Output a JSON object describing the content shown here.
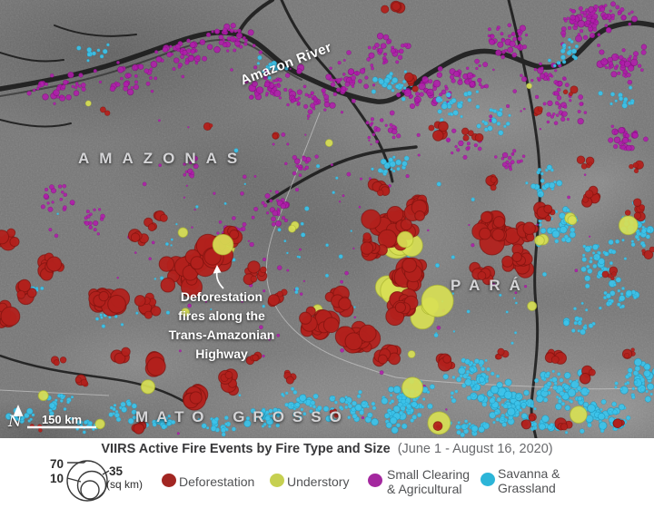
{
  "map": {
    "labels": {
      "state_amazonas": "AMAZONAS",
      "state_para": "PARÁ",
      "state_mato_grosso": "MATO GROSSO",
      "river": "Amazon River",
      "annotation": "Deforestation\nfires along the\nTrans-Amazonian\nHighway",
      "scale": "150 km",
      "north": "N"
    },
    "fire_type_colors": {
      "d": {
        "fill": "#b2211c",
        "stroke": "#7e120e",
        "opacity": 0.95
      },
      "u": {
        "fill": "#d8e055",
        "stroke": "#aab530",
        "opacity": 0.92
      },
      "s": {
        "fill": "#b01dab",
        "stroke": "#770f74",
        "opacity": 0.88
      },
      "g": {
        "fill": "#3cc3ea",
        "stroke": "#1b93b8",
        "opacity": 0.92
      }
    },
    "clusters": [
      [
        "s",
        70,
        95,
        45,
        22,
        35,
        1.5,
        3.5
      ],
      [
        "s",
        140,
        85,
        40,
        20,
        30,
        1.5,
        3.5
      ],
      [
        "s",
        205,
        65,
        35,
        22,
        40,
        1.5,
        3.5
      ],
      [
        "s",
        258,
        42,
        30,
        18,
        40,
        1.5,
        3.5
      ],
      [
        "s",
        300,
        95,
        35,
        25,
        45,
        1.5,
        4
      ],
      [
        "s",
        345,
        110,
        30,
        20,
        35,
        1.5,
        3.5
      ],
      [
        "s",
        385,
        90,
        35,
        22,
        40,
        1.5,
        3.5
      ],
      [
        "s",
        425,
        55,
        30,
        20,
        30,
        1.5,
        3.5
      ],
      [
        "s",
        470,
        100,
        35,
        22,
        40,
        1.5,
        4
      ],
      [
        "s",
        515,
        85,
        35,
        20,
        35,
        1.5,
        3.5
      ],
      [
        "s",
        555,
        45,
        30,
        22,
        40,
        1.5,
        3.5
      ],
      [
        "s",
        600,
        85,
        30,
        20,
        30,
        1.5,
        3.5
      ],
      [
        "s",
        645,
        30,
        35,
        25,
        55,
        1.5,
        4
      ],
      [
        "s",
        685,
        70,
        30,
        22,
        45,
        1.5,
        4
      ],
      [
        "s",
        690,
        155,
        25,
        20,
        30,
        1.5,
        3.5
      ],
      [
        "s",
        620,
        120,
        30,
        20,
        30,
        1.5,
        3.5
      ],
      [
        "s",
        665,
        15,
        40,
        14,
        40,
        1.5,
        3.5
      ],
      [
        "s",
        300,
        230,
        28,
        22,
        25,
        1.5,
        3.5
      ],
      [
        "s",
        255,
        255,
        22,
        18,
        18,
        1.5,
        3
      ],
      [
        "s",
        330,
        180,
        22,
        15,
        15,
        1.5,
        3
      ],
      [
        "s",
        65,
        215,
        25,
        18,
        18,
        1.5,
        3
      ],
      [
        "s",
        100,
        245,
        20,
        15,
        14,
        1.5,
        3
      ],
      [
        "s",
        210,
        185,
        18,
        14,
        10,
        1.5,
        3
      ],
      [
        "s",
        420,
        140,
        22,
        18,
        18,
        1.5,
        3
      ],
      [
        "s",
        510,
        160,
        25,
        18,
        15,
        1.5,
        3
      ],
      [
        "s",
        560,
        180,
        22,
        16,
        15,
        1.5,
        3
      ],
      [
        "s",
        360,
        240,
        360,
        240,
        130,
        1,
        2.5
      ],
      [
        "g",
        430,
        95,
        30,
        20,
        25,
        1.5,
        3.5
      ],
      [
        "g",
        500,
        115,
        30,
        20,
        25,
        1.5,
        3.5
      ],
      [
        "g",
        545,
        130,
        25,
        18,
        18,
        1.5,
        3
      ],
      [
        "g",
        300,
        75,
        20,
        15,
        12,
        1.5,
        3
      ],
      [
        "g",
        100,
        60,
        25,
        15,
        10,
        1.5,
        3
      ],
      [
        "g",
        620,
        60,
        25,
        18,
        18,
        1.5,
        3
      ],
      [
        "g",
        680,
        110,
        22,
        16,
        15,
        1.5,
        3
      ],
      [
        "g",
        615,
        250,
        28,
        22,
        30,
        1.5,
        4
      ],
      [
        "g",
        660,
        285,
        30,
        25,
        40,
        1.5,
        4
      ],
      [
        "g",
        700,
        255,
        22,
        20,
        30,
        1.5,
        4
      ],
      [
        "g",
        680,
        325,
        25,
        20,
        25,
        1.5,
        4
      ],
      [
        "g",
        640,
        355,
        25,
        18,
        20,
        1.5,
        4
      ],
      [
        "g",
        600,
        200,
        25,
        18,
        20,
        1.5,
        3.5
      ],
      [
        "g",
        430,
        180,
        25,
        18,
        20,
        1.5,
        3.5
      ],
      [
        "g",
        32,
        320,
        16,
        12,
        12,
        1.5,
        3.5
      ],
      [
        "g",
        115,
        350,
        18,
        12,
        10,
        1.5,
        3
      ],
      [
        "g",
        450,
        440,
        35,
        25,
        55,
        1.5,
        4.5
      ],
      [
        "g",
        520,
        420,
        35,
        25,
        60,
        1.5,
        4.5
      ],
      [
        "g",
        565,
        450,
        35,
        22,
        55,
        1.5,
        4.5
      ],
      [
        "g",
        620,
        430,
        35,
        25,
        60,
        1.5,
        4.5
      ],
      [
        "g",
        665,
        460,
        35,
        20,
        50,
        1.5,
        4.5
      ],
      [
        "g",
        700,
        420,
        25,
        22,
        40,
        1.5,
        4.5
      ],
      [
        "g",
        385,
        450,
        30,
        22,
        40,
        1.5,
        4
      ],
      [
        "g",
        330,
        445,
        28,
        20,
        30,
        1.5,
        4
      ],
      [
        "g",
        290,
        462,
        25,
        15,
        25,
        1.5,
        4
      ],
      [
        "g",
        240,
        468,
        22,
        12,
        20,
        1.5,
        3.5
      ],
      [
        "g",
        135,
        452,
        22,
        15,
        18,
        1.5,
        3.5
      ],
      [
        "g",
        62,
        442,
        22,
        15,
        20,
        1.5,
        3.5
      ],
      [
        "g",
        25,
        462,
        18,
        12,
        16,
        1.5,
        3.5
      ],
      [
        "g",
        95,
        470,
        20,
        10,
        16,
        1.5,
        3.5
      ],
      [
        "g",
        175,
        465,
        20,
        10,
        14,
        1.5,
        3.5
      ],
      [
        "g",
        520,
        470,
        30,
        10,
        25,
        1.5,
        4
      ],
      [
        "g",
        600,
        470,
        30,
        10,
        25,
        1.5,
        4
      ],
      [
        "g",
        360,
        300,
        360,
        180,
        80,
        1,
        2.5
      ],
      [
        "u",
        240,
        272,
        16,
        12,
        3,
        8,
        15
      ],
      [
        "u",
        320,
        255,
        10,
        8,
        2,
        4,
        7
      ],
      [
        "u",
        200,
        258,
        8,
        6,
        1,
        4,
        6
      ],
      [
        "u",
        452,
        268,
        20,
        16,
        3,
        12,
        21
      ],
      [
        "u",
        432,
        315,
        14,
        12,
        2,
        12,
        18
      ],
      [
        "u",
        465,
        342,
        14,
        10,
        2,
        9,
        15
      ],
      [
        "u",
        345,
        342,
        8,
        6,
        1,
        4,
        6
      ],
      [
        "u",
        628,
        242,
        10,
        8,
        2,
        5,
        9
      ],
      [
        "u",
        596,
        262,
        10,
        10,
        2,
        5,
        8
      ],
      [
        "u",
        690,
        250,
        8,
        6,
        1,
        10,
        13
      ],
      [
        "u",
        585,
        338,
        6,
        5,
        1,
        4,
        6
      ],
      [
        "u",
        455,
        430,
        8,
        6,
        1,
        10,
        13
      ],
      [
        "u",
        482,
        466,
        8,
        6,
        1,
        12,
        15
      ],
      [
        "u",
        638,
        456,
        8,
        6,
        1,
        8,
        11
      ],
      [
        "u",
        160,
        430,
        8,
        6,
        1,
        7,
        9
      ],
      [
        "u",
        48,
        437,
        6,
        5,
        1,
        5,
        7
      ],
      [
        "u",
        110,
        470,
        6,
        5,
        1,
        4,
        6
      ],
      [
        "u",
        95,
        115,
        5,
        4,
        1,
        3,
        4
      ],
      [
        "u",
        580,
        95,
        5,
        4,
        1,
        3,
        4
      ],
      [
        "u",
        360,
        160,
        5,
        4,
        1,
        3,
        4
      ],
      [
        "d",
        55,
        290,
        18,
        14,
        10,
        4,
        10
      ],
      [
        "d",
        28,
        322,
        14,
        12,
        7,
        4,
        9
      ],
      [
        "d",
        8,
        262,
        10,
        12,
        6,
        4,
        9
      ],
      [
        "d",
        5,
        345,
        10,
        14,
        8,
        5,
        11
      ],
      [
        "d",
        115,
        330,
        22,
        14,
        14,
        5,
        11
      ],
      [
        "d",
        162,
        338,
        18,
        12,
        9,
        4,
        9
      ],
      [
        "d",
        150,
        262,
        12,
        10,
        5,
        3,
        7
      ],
      [
        "d",
        172,
        242,
        12,
        10,
        6,
        4,
        8
      ],
      [
        "d",
        205,
        300,
        22,
        18,
        22,
        6,
        13
      ],
      [
        "d",
        232,
        278,
        20,
        16,
        18,
        6,
        13
      ],
      [
        "d",
        256,
        259,
        14,
        12,
        10,
        4,
        9
      ],
      [
        "d",
        282,
        300,
        14,
        12,
        8,
        3,
        8
      ],
      [
        "d",
        308,
        330,
        12,
        10,
        6,
        3,
        7
      ],
      [
        "d",
        352,
        355,
        22,
        14,
        20,
        5,
        11
      ],
      [
        "d",
        395,
        372,
        20,
        14,
        16,
        5,
        12
      ],
      [
        "d",
        428,
        392,
        14,
        10,
        8,
        4,
        9
      ],
      [
        "d",
        432,
        252,
        24,
        20,
        26,
        6,
        14
      ],
      [
        "d",
        448,
        300,
        18,
        16,
        20,
        6,
        13
      ],
      [
        "d",
        442,
        340,
        16,
        14,
        14,
        5,
        11
      ],
      [
        "d",
        462,
        228,
        14,
        12,
        12,
        5,
        10
      ],
      [
        "d",
        408,
        272,
        14,
        14,
        12,
        4,
        9
      ],
      [
        "d",
        372,
        332,
        16,
        12,
        12,
        4,
        9
      ],
      [
        "d",
        548,
        252,
        24,
        18,
        26,
        6,
        14
      ],
      [
        "d",
        572,
        288,
        16,
        14,
        12,
        5,
        10
      ],
      [
        "d",
        532,
        300,
        12,
        10,
        7,
        4,
        8
      ],
      [
        "d",
        600,
        235,
        12,
        10,
        8,
        3,
        7
      ],
      [
        "d",
        582,
        258,
        12,
        10,
        8,
        4,
        8
      ],
      [
        "d",
        652,
        215,
        12,
        10,
        8,
        3,
        6
      ],
      [
        "d",
        698,
        232,
        10,
        10,
        7,
        3,
        6
      ],
      [
        "d",
        645,
        180,
        10,
        8,
        5,
        2,
        5
      ],
      [
        "d",
        672,
        302,
        8,
        8,
        5,
        2,
        5
      ],
      [
        "d",
        712,
        278,
        8,
        8,
        4,
        2,
        5
      ],
      [
        "d",
        432,
        8,
        10,
        6,
        4,
        4,
        8
      ],
      [
        "d",
        452,
        92,
        10,
        8,
        5,
        3,
        6
      ],
      [
        "d",
        482,
        142,
        12,
        10,
        7,
        3,
        7
      ],
      [
        "d",
        520,
        150,
        10,
        8,
        5,
        3,
        6
      ],
      [
        "d",
        592,
        122,
        8,
        6,
        4,
        2,
        5
      ],
      [
        "d",
        630,
        100,
        8,
        6,
        3,
        2,
        5
      ],
      [
        "d",
        700,
        182,
        8,
        8,
        5,
        2,
        6
      ],
      [
        "d",
        540,
        200,
        10,
        8,
        6,
        3,
        6
      ],
      [
        "d",
        230,
        140,
        8,
        6,
        3,
        2,
        5
      ],
      [
        "d",
        302,
        150,
        6,
        5,
        2,
        2,
        4
      ],
      [
        "d",
        118,
        122,
        6,
        5,
        2,
        2,
        4
      ],
      [
        "d",
        172,
        402,
        14,
        10,
        7,
        5,
        11
      ],
      [
        "d",
        212,
        440,
        16,
        12,
        9,
        6,
        13
      ],
      [
        "d",
        252,
        420,
        12,
        10,
        7,
        4,
        9
      ],
      [
        "d",
        282,
        392,
        10,
        8,
        5,
        3,
        7
      ],
      [
        "d",
        322,
        415,
        10,
        8,
        4,
        3,
        7
      ],
      [
        "d",
        132,
        392,
        10,
        8,
        5,
        3,
        7
      ],
      [
        "d",
        92,
        422,
        10,
        8,
        4,
        3,
        7
      ],
      [
        "d",
        62,
        397,
        8,
        6,
        3,
        3,
        6
      ],
      [
        "d",
        492,
        400,
        12,
        10,
        6,
        3,
        8
      ],
      [
        "d",
        548,
        392,
        10,
        8,
        4,
        3,
        6
      ],
      [
        "d",
        612,
        392,
        10,
        8,
        6,
        3,
        7
      ],
      [
        "d",
        652,
        412,
        10,
        8,
        4,
        3,
        6
      ],
      [
        "d",
        692,
        392,
        8,
        8,
        4,
        2,
        6
      ],
      [
        "d",
        582,
        462,
        10,
        8,
        4,
        3,
        7
      ],
      [
        "d",
        622,
        470,
        10,
        6,
        4,
        3,
        7
      ],
      [
        "d",
        682,
        468,
        8,
        6,
        3,
        3,
        6
      ],
      [
        "d",
        482,
        472,
        8,
        5,
        3,
        2,
        5
      ],
      [
        "d",
        152,
        470,
        8,
        5,
        3,
        3,
        6
      ],
      [
        "d",
        42,
        470,
        8,
        5,
        3,
        2,
        5
      ],
      [
        "d",
        368,
        455,
        8,
        6,
        3,
        2,
        5
      ],
      [
        "d",
        418,
        210,
        12,
        10,
        6,
        3,
        7
      ],
      [
        "u",
        475,
        332,
        10,
        8,
        1,
        16,
        22
      ],
      [
        "u",
        246,
        268,
        8,
        6,
        1,
        9,
        12
      ],
      [
        "u",
        440,
        260,
        8,
        6,
        1,
        8,
        11
      ],
      [
        "u",
        455,
        390,
        6,
        5,
        1,
        4,
        6
      ],
      [
        "u",
        205,
        345,
        5,
        4,
        1,
        3,
        5
      ],
      [
        "g",
        545,
        435,
        30,
        20,
        20,
        2,
        5
      ],
      [
        "g",
        440,
        460,
        25,
        15,
        15,
        2,
        5
      ]
    ]
  },
  "caption": {
    "title_bold": "VIIRS Active Fire Events by Fire Type and Size",
    "title_period": "(June 1 - August 16, 2020)"
  },
  "legend": {
    "size": {
      "large": "70",
      "mid": "35",
      "small": "10",
      "unit": "(sq km)"
    },
    "items": [
      {
        "label": "Deforestation",
        "color": "#a22622"
      },
      {
        "label": "Understory",
        "color": "#c6d051"
      },
      {
        "label": "Small Clearing\n& Agricultural",
        "color": "#a4289f"
      },
      {
        "label": "Savanna &\nGrassland",
        "color": "#2cb5d8"
      }
    ]
  }
}
